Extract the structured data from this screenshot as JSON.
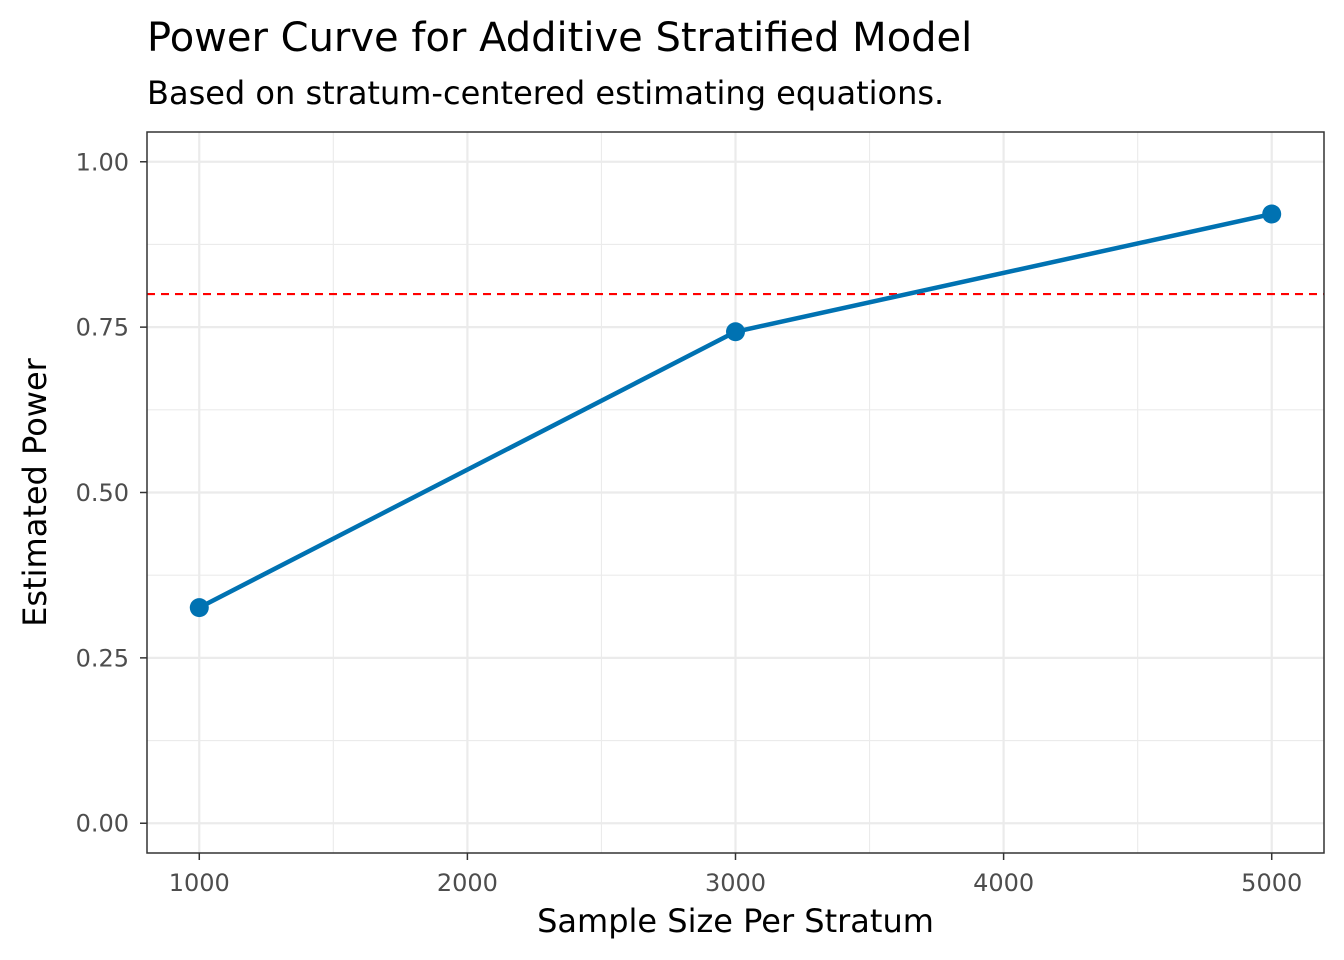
{
  "chart_data": {
    "type": "line",
    "title": "Power Curve for Additive Stratified Model",
    "subtitle": "Based on stratum-centered estimating equations.",
    "xlabel": "Sample Size Per Stratum",
    "ylabel": "Estimated Power",
    "x": [
      1000,
      3000,
      5000
    ],
    "series": [
      {
        "values": [
          0.326,
          0.743,
          0.921
        ],
        "color": "#0072b2"
      }
    ],
    "reference_line": {
      "y": 0.8,
      "color": "#ff0000",
      "style": "dashed"
    },
    "xlim": [
      805,
      5195
    ],
    "ylim": [
      -0.045,
      1.045
    ],
    "xticks": [
      1000,
      2000,
      3000,
      4000,
      5000
    ],
    "xtick_labels": [
      "1000",
      "2000",
      "3000",
      "4000",
      "5000"
    ],
    "x_minor_ticks": [
      1500,
      2500,
      3500,
      4500
    ],
    "yticks": [
      0,
      0.25,
      0.5,
      0.75,
      1
    ],
    "ytick_labels": [
      "0.00",
      "0.25",
      "0.50",
      "0.75",
      "1.00"
    ],
    "y_minor_ticks": [
      0.125,
      0.375,
      0.625,
      0.875
    ],
    "grid": true,
    "legend": "none"
  }
}
